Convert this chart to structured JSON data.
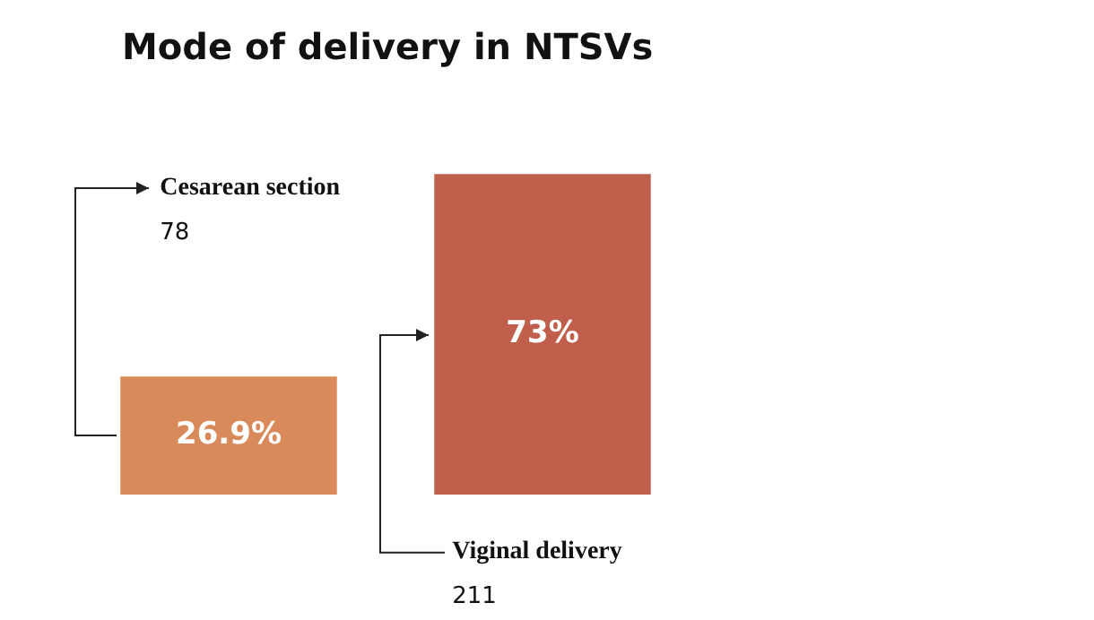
{
  "chart_data": {
    "type": "bar",
    "title": "Mode of delivery in NTSVs",
    "categories": [
      "Cesarean section",
      "Viginal delivery"
    ],
    "values": [
      26.9,
      73
    ],
    "colors": [
      "#d98a5a",
      "#c0604c"
    ],
    "value_labels": [
      "26.9%",
      "73%"
    ],
    "annotations": [
      "78",
      "211"
    ]
  }
}
